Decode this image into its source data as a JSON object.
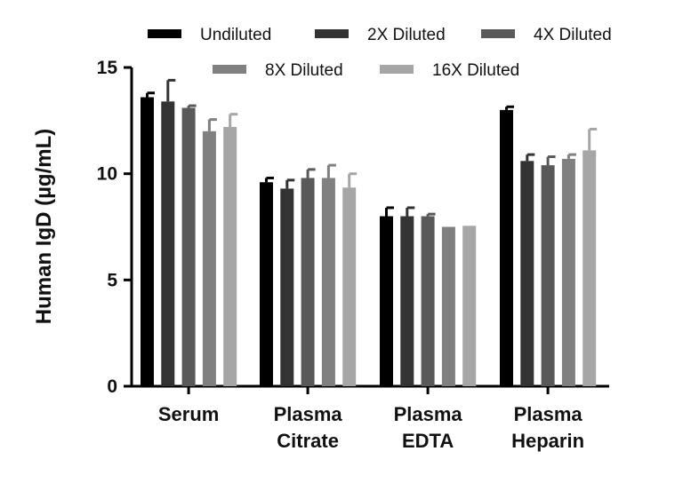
{
  "chart_data": {
    "type": "bar",
    "title": "",
    "xlabel": "",
    "ylabel": "Human IgD (µg/mL)",
    "ylim": [
      0,
      15
    ],
    "yticks": [
      0,
      5,
      10,
      15
    ],
    "categories": [
      [
        "Serum"
      ],
      [
        "Plasma",
        "Citrate"
      ],
      [
        "Plasma",
        "EDTA"
      ],
      [
        "Plasma",
        "Heparin"
      ]
    ],
    "series": [
      {
        "name": "Undiluted",
        "color": "#000000",
        "values": [
          13.6,
          9.6,
          8.0,
          13.0
        ],
        "errors": [
          0.2,
          0.2,
          0.4,
          0.15
        ]
      },
      {
        "name": "2X Diluted",
        "color": "#333333",
        "values": [
          13.4,
          9.3,
          8.0,
          10.6
        ],
        "errors": [
          1.0,
          0.4,
          0.4,
          0.3
        ]
      },
      {
        "name": "4X Diluted",
        "color": "#595959",
        "values": [
          13.1,
          9.8,
          8.0,
          10.4
        ],
        "errors": [
          0.1,
          0.4,
          0.1,
          0.4
        ]
      },
      {
        "name": "8X Diluted",
        "color": "#808080",
        "values": [
          12.0,
          9.8,
          7.5,
          10.7
        ],
        "errors": [
          0.55,
          0.6,
          0.0,
          0.2
        ]
      },
      {
        "name": "16X Diluted",
        "color": "#a6a6a6",
        "values": [
          12.2,
          9.35,
          7.55,
          11.1
        ],
        "errors": [
          0.6,
          0.65,
          0.0,
          1.0
        ]
      }
    ],
    "legend_position": "top",
    "grid": false
  }
}
